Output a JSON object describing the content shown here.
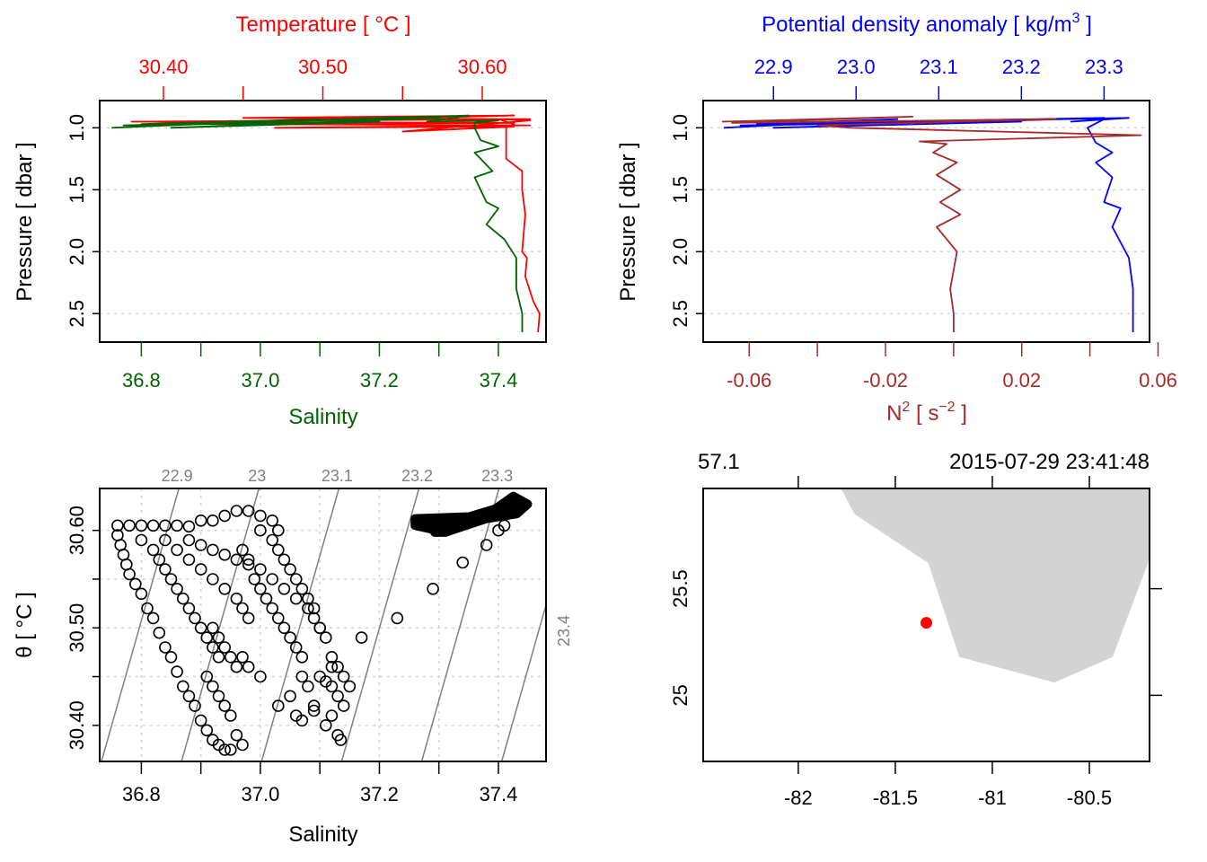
{
  "chart_data": [
    {
      "type": "line",
      "panel": "top-left",
      "title": "",
      "top_axis": {
        "label": "Temperature [ °C ]",
        "color": "#ff0000",
        "range": [
          30.36,
          30.64
        ],
        "ticks": [
          30.4,
          30.45,
          30.5,
          30.55,
          30.6
        ],
        "tick_labels": [
          "30.40",
          "",
          "30.50",
          "",
          "30.60"
        ]
      },
      "bottom_axis": {
        "label": "Salinity",
        "color": "#006400",
        "range": [
          36.73,
          37.48
        ],
        "ticks": [
          36.8,
          36.9,
          37.0,
          37.1,
          37.2,
          37.3,
          37.4
        ],
        "tick_labels": [
          "36.8",
          "",
          "37.0",
          "",
          "37.2",
          "",
          "37.4"
        ]
      },
      "ylabel": "Pressure [ dbar ]",
      "ylim": [
        2.73,
        0.78
      ],
      "yticks": [
        1.0,
        1.5,
        2.0,
        2.5
      ],
      "ytick_labels": [
        "1.0",
        "1.5",
        "2.0",
        "2.5"
      ],
      "grid": "horizontal-dotted",
      "series": [
        {
          "name": "Temperature",
          "color": "#ff0000",
          "axis": "top",
          "points": [
            [
              30.4,
              0.97
            ],
            [
              30.62,
              0.9
            ],
            [
              30.45,
              0.92
            ],
            [
              30.63,
              0.93
            ],
            [
              30.38,
              0.95
            ],
            [
              30.62,
              0.96
            ],
            [
              30.43,
              0.97
            ],
            [
              30.63,
              0.98
            ],
            [
              30.47,
              1.0
            ],
            [
              30.62,
              0.99
            ],
            [
              30.55,
              1.03
            ],
            [
              30.63,
              0.94
            ],
            [
              30.61,
              0.93
            ],
            [
              30.62,
              0.97
            ],
            [
              30.615,
              1.0
            ],
            [
              30.615,
              1.25
            ],
            [
              30.625,
              1.35
            ],
            [
              30.625,
              1.5
            ],
            [
              30.627,
              1.7
            ],
            [
              30.625,
              2.0
            ],
            [
              30.628,
              2.05
            ],
            [
              30.627,
              2.2
            ],
            [
              30.632,
              2.4
            ],
            [
              30.636,
              2.5
            ],
            [
              30.635,
              2.65
            ]
          ]
        },
        {
          "name": "Salinity",
          "color": "#006400",
          "axis": "bottom",
          "points": [
            [
              36.75,
              1.0
            ],
            [
              37.1,
              0.93
            ],
            [
              36.8,
              0.97
            ],
            [
              37.3,
              0.92
            ],
            [
              36.85,
              1.0
            ],
            [
              37.2,
              0.95
            ],
            [
              36.77,
              0.98
            ],
            [
              37.35,
              0.9
            ],
            [
              37.28,
              0.95
            ],
            [
              37.4,
              0.94
            ],
            [
              37.36,
              0.96
            ],
            [
              37.36,
              1.0
            ],
            [
              37.37,
              1.1
            ],
            [
              37.4,
              1.15
            ],
            [
              37.36,
              1.2
            ],
            [
              37.39,
              1.35
            ],
            [
              37.36,
              1.4
            ],
            [
              37.38,
              1.6
            ],
            [
              37.4,
              1.65
            ],
            [
              37.38,
              1.78
            ],
            [
              37.41,
              1.9
            ],
            [
              37.43,
              2.05
            ],
            [
              37.43,
              2.3
            ],
            [
              37.44,
              2.5
            ],
            [
              37.44,
              2.65
            ]
          ]
        }
      ]
    },
    {
      "type": "line",
      "panel": "top-right",
      "title": "",
      "top_axis": {
        "label": "Potential density anomaly [ kg/m",
        "label_sup": "3",
        "label_end": " ]",
        "color": "#0000ff",
        "range": [
          22.815,
          23.355
        ],
        "ticks": [
          22.9,
          23.0,
          23.1,
          23.2,
          23.3
        ],
        "tick_labels": [
          "22.9",
          "23.0",
          "23.1",
          "23.2",
          "23.3"
        ]
      },
      "bottom_axis": {
        "label": "N",
        "label_sup": "2",
        "label_mid": " [ s",
        "label_sup2": "−2",
        "label_end": " ]",
        "color": "#a52a2a",
        "range": [
          -0.0735,
          0.0575
        ],
        "ticks": [
          -0.06,
          -0.04,
          -0.02,
          0.0,
          0.02,
          0.04,
          0.06
        ],
        "tick_labels": [
          "-0.06",
          "",
          "-0.02",
          "",
          "0.02",
          "",
          "0.06"
        ]
      },
      "ylabel": "Pressure [ dbar ]",
      "ylim": [
        2.73,
        0.78
      ],
      "yticks": [
        1.0,
        1.5,
        2.0,
        2.5
      ],
      "ytick_labels": [
        "1.0",
        "1.5",
        "2.0",
        "2.5"
      ],
      "grid": "horizontal-dotted",
      "series": [
        {
          "name": "Potential density anomaly",
          "color": "#0000ff",
          "axis": "top",
          "points": [
            [
              22.84,
              1.0
            ],
            [
              23.05,
              0.93
            ],
            [
              22.88,
              0.97
            ],
            [
              23.3,
              0.92
            ],
            [
              22.9,
              1.0
            ],
            [
              23.2,
              0.95
            ],
            [
              22.86,
              0.98
            ],
            [
              23.33,
              0.92
            ],
            [
              23.26,
              0.95
            ],
            [
              23.3,
              0.93
            ],
            [
              23.28,
              1.0
            ],
            [
              23.29,
              1.12
            ],
            [
              23.31,
              1.2
            ],
            [
              23.29,
              1.28
            ],
            [
              23.31,
              1.4
            ],
            [
              23.3,
              1.6
            ],
            [
              23.32,
              1.65
            ],
            [
              23.31,
              1.8
            ],
            [
              23.33,
              2.05
            ],
            [
              23.335,
              2.3
            ],
            [
              23.335,
              2.5
            ],
            [
              23.335,
              2.65
            ]
          ]
        },
        {
          "name": "N2",
          "color": "#a52a2a",
          "axis": "bottom",
          "points": [
            [
              -0.068,
              0.95
            ],
            [
              -0.012,
              0.91
            ],
            [
              -0.065,
              0.96
            ],
            [
              0.03,
              0.93
            ],
            [
              -0.04,
              0.98
            ],
            [
              -0.03,
              1.0
            ],
            [
              0.055,
              1.06
            ],
            [
              -0.01,
              1.11
            ],
            [
              -0.002,
              1.13
            ],
            [
              -0.006,
              1.2
            ],
            [
              0.001,
              1.28
            ],
            [
              -0.005,
              1.38
            ],
            [
              0.002,
              1.5
            ],
            [
              -0.004,
              1.6
            ],
            [
              0.002,
              1.7
            ],
            [
              -0.005,
              1.8
            ],
            [
              0.001,
              2.0
            ],
            [
              -0.001,
              2.3
            ],
            [
              0.0,
              2.5
            ],
            [
              0.0,
              2.65
            ]
          ]
        }
      ]
    },
    {
      "type": "scatter",
      "panel": "bottom-left",
      "title": "",
      "xlabel": "Salinity",
      "ylabel": "θ [ °C ]",
      "xlim": [
        36.73,
        37.48
      ],
      "ylim": [
        30.363,
        30.643
      ],
      "xticks": [
        36.8,
        36.9,
        37.0,
        37.1,
        37.2,
        37.3,
        37.4
      ],
      "xtick_labels": [
        "36.8",
        "",
        "37.0",
        "",
        "37.2",
        "",
        "37.4"
      ],
      "yticks": [
        30.4,
        30.45,
        30.5,
        30.55,
        30.6
      ],
      "ytick_labels": [
        "30.40",
        "",
        "30.50",
        "",
        "30.60"
      ],
      "grid": "dotted",
      "marker": "open-circle",
      "isopycnals": [
        {
          "label": "22.9",
          "sigma": 22.9
        },
        {
          "label": "23",
          "sigma": 23.0
        },
        {
          "label": "23.1",
          "sigma": 23.1
        },
        {
          "label": "23.2",
          "sigma": 23.2
        },
        {
          "label": "23.3",
          "sigma": 23.3
        },
        {
          "label": "23.4",
          "sigma": 23.4
        }
      ],
      "clusters": [
        {
          "name": "dense-upper-right",
          "x_range": [
            37.26,
            37.44
          ],
          "y_range": [
            30.598,
            30.635
          ]
        }
      ],
      "points": [
        [
          36.76,
          30.605
        ],
        [
          36.76,
          30.595
        ],
        [
          36.765,
          30.585
        ],
        [
          36.77,
          30.575
        ],
        [
          36.775,
          30.565
        ],
        [
          36.78,
          30.555
        ],
        [
          36.79,
          30.545
        ],
        [
          36.8,
          30.535
        ],
        [
          36.81,
          30.52
        ],
        [
          36.82,
          30.51
        ],
        [
          36.83,
          30.495
        ],
        [
          36.84,
          30.48
        ],
        [
          36.85,
          30.47
        ],
        [
          36.78,
          30.605
        ],
        [
          36.8,
          30.605
        ],
        [
          36.82,
          30.605
        ],
        [
          36.84,
          30.605
        ],
        [
          36.86,
          30.605
        ],
        [
          36.88,
          30.604
        ],
        [
          36.8,
          30.59
        ],
        [
          36.82,
          30.58
        ],
        [
          36.83,
          30.57
        ],
        [
          36.84,
          30.56
        ],
        [
          36.85,
          30.55
        ],
        [
          36.86,
          30.54
        ],
        [
          36.87,
          30.53
        ],
        [
          36.88,
          30.52
        ],
        [
          36.89,
          30.51
        ],
        [
          36.9,
          30.5
        ],
        [
          36.91,
          30.49
        ],
        [
          36.92,
          30.48
        ],
        [
          36.93,
          30.47
        ],
        [
          36.86,
          30.455
        ],
        [
          36.87,
          30.44
        ],
        [
          36.88,
          30.43
        ],
        [
          36.89,
          30.42
        ],
        [
          36.9,
          30.405
        ],
        [
          36.91,
          30.395
        ],
        [
          36.92,
          30.385
        ],
        [
          36.93,
          30.38
        ],
        [
          36.94,
          30.375
        ],
        [
          36.95,
          30.375
        ],
        [
          36.84,
          30.59
        ],
        [
          36.86,
          30.58
        ],
        [
          36.88,
          30.57
        ],
        [
          36.9,
          30.56
        ],
        [
          36.92,
          30.55
        ],
        [
          36.94,
          30.54
        ],
        [
          36.96,
          30.53
        ],
        [
          36.97,
          30.52
        ],
        [
          36.98,
          30.51
        ],
        [
          36.9,
          30.61
        ],
        [
          36.92,
          30.61
        ],
        [
          36.94,
          30.615
        ],
        [
          36.96,
          30.62
        ],
        [
          36.98,
          30.62
        ],
        [
          37.0,
          30.615
        ],
        [
          37.02,
          30.61
        ],
        [
          37.03,
          30.6
        ],
        [
          36.88,
          30.59
        ],
        [
          36.9,
          30.585
        ],
        [
          36.92,
          30.58
        ],
        [
          36.94,
          30.575
        ],
        [
          36.96,
          30.57
        ],
        [
          36.98,
          30.565
        ],
        [
          37.0,
          30.56
        ],
        [
          37.02,
          30.55
        ],
        [
          37.04,
          30.54
        ],
        [
          37.06,
          30.53
        ],
        [
          37.08,
          30.52
        ],
        [
          37.09,
          30.51
        ],
        [
          37.1,
          30.5
        ],
        [
          37.0,
          30.6
        ],
        [
          37.02,
          30.59
        ],
        [
          37.03,
          30.58
        ],
        [
          37.04,
          30.57
        ],
        [
          37.05,
          30.56
        ],
        [
          37.06,
          30.55
        ],
        [
          37.07,
          30.54
        ],
        [
          37.08,
          30.53
        ],
        [
          37.09,
          30.52
        ],
        [
          37.1,
          30.5
        ],
        [
          37.11,
          30.49
        ],
        [
          37.12,
          30.47
        ],
        [
          37.13,
          30.46
        ],
        [
          37.14,
          30.45
        ],
        [
          37.15,
          30.44
        ],
        [
          36.97,
          30.58
        ],
        [
          36.98,
          30.57
        ],
        [
          36.99,
          30.55
        ],
        [
          37.0,
          30.54
        ],
        [
          37.01,
          30.53
        ],
        [
          37.02,
          30.52
        ],
        [
          37.03,
          30.51
        ],
        [
          37.04,
          30.5
        ],
        [
          37.05,
          30.49
        ],
        [
          37.06,
          30.48
        ],
        [
          37.07,
          30.47
        ],
        [
          37.07,
          30.45
        ],
        [
          37.08,
          30.44
        ],
        [
          37.09,
          30.42
        ],
        [
          36.92,
          30.5
        ],
        [
          36.93,
          30.49
        ],
        [
          36.94,
          30.48
        ],
        [
          36.95,
          30.47
        ],
        [
          36.96,
          30.46
        ],
        [
          36.97,
          30.47
        ],
        [
          36.98,
          30.46
        ],
        [
          36.91,
          30.45
        ],
        [
          36.92,
          30.44
        ],
        [
          36.93,
          30.43
        ],
        [
          36.94,
          30.42
        ],
        [
          36.95,
          30.41
        ],
        [
          36.96,
          30.39
        ],
        [
          36.97,
          30.38
        ],
        [
          37.0,
          30.45
        ],
        [
          37.03,
          30.42
        ],
        [
          37.05,
          30.43
        ],
        [
          37.06,
          30.41
        ],
        [
          37.07,
          30.405
        ],
        [
          37.09,
          30.415
        ],
        [
          37.11,
          30.4
        ],
        [
          37.12,
          30.41
        ],
        [
          37.13,
          30.39
        ],
        [
          37.135,
          30.385
        ],
        [
          37.1,
          30.45
        ],
        [
          37.11,
          30.445
        ],
        [
          37.12,
          30.44
        ],
        [
          37.13,
          30.43
        ],
        [
          37.14,
          30.42
        ],
        [
          37.12,
          30.46
        ],
        [
          37.17,
          30.49
        ],
        [
          37.23,
          30.51
        ],
        [
          37.29,
          30.54
        ],
        [
          37.34,
          30.567
        ],
        [
          37.38,
          30.585
        ],
        [
          37.4,
          30.6
        ],
        [
          37.41,
          30.605
        ]
      ]
    },
    {
      "type": "map",
      "panel": "bottom-right",
      "title_left": "57.1",
      "title_right": "2015-07-29 23:41:48",
      "xlim": [
        -82.49,
        -80.19
      ],
      "ylim": [
        24.69,
        25.97
      ],
      "xticks": [
        -82,
        -81.5,
        -81,
        -80.5
      ],
      "xtick_labels": [
        "-82",
        "-81.5",
        "-81",
        "-80.5"
      ],
      "yticks": [
        25,
        25.5
      ],
      "ytick_labels": [
        "25",
        "25.5"
      ],
      "land_color": "#d3d3d3",
      "land_polygon": [
        [
          -81.78,
          25.97
        ],
        [
          -81.71,
          25.85
        ],
        [
          -81.33,
          25.62
        ],
        [
          -81.17,
          25.18
        ],
        [
          -80.68,
          25.06
        ],
        [
          -80.38,
          25.18
        ],
        [
          -80.19,
          25.64
        ],
        [
          -80.19,
          25.97
        ]
      ],
      "station": {
        "lon": -81.34,
        "lat": 25.34,
        "color": "#ff0000"
      }
    }
  ]
}
